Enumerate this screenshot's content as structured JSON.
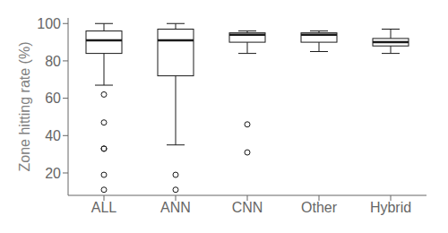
{
  "chart_data": {
    "type": "box",
    "ylabel": "Zone hitting rate (%)",
    "categories": [
      "ALL",
      "ANN",
      "CNN",
      "Other",
      "Hybrid"
    ],
    "boxes": [
      {
        "whislo": 67,
        "q1": 84,
        "med": 91,
        "q3": 96,
        "whishi": 100,
        "fliers": [
          62,
          47,
          33,
          33,
          19,
          11
        ]
      },
      {
        "whislo": 35,
        "q1": 72,
        "med": 91,
        "q3": 97,
        "whishi": 100,
        "fliers": [
          19,
          11
        ]
      },
      {
        "whislo": 84,
        "q1": 90,
        "med": 94,
        "q3": 95,
        "whishi": 96,
        "fliers": [
          46,
          31
        ]
      },
      {
        "whislo": 85,
        "q1": 90,
        "med": 94,
        "q3": 95,
        "whishi": 96,
        "fliers": []
      },
      {
        "whislo": 84,
        "q1": 88,
        "med": 90,
        "q3": 92,
        "whishi": 97,
        "fliers": []
      }
    ],
    "color": "#1a1a1a",
    "ylim": [
      8,
      103
    ],
    "yticks": [
      20,
      40,
      60,
      80,
      100
    ],
    "grid": false
  }
}
